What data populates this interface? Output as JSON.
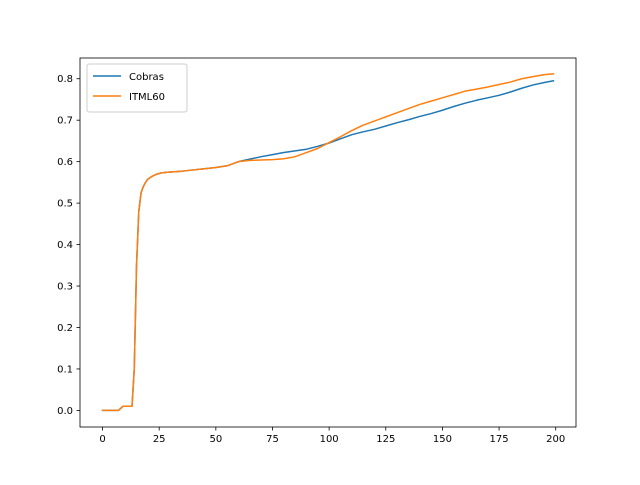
{
  "chart_data": {
    "type": "line",
    "title": "",
    "xlabel": "",
    "ylabel": "",
    "xlim": [
      -9.95,
      208.95
    ],
    "ylim": [
      -0.04,
      0.85
    ],
    "xticks": [
      0,
      25,
      50,
      75,
      100,
      125,
      150,
      175,
      200
    ],
    "yticks": [
      0.0,
      0.1,
      0.2,
      0.3,
      0.4,
      0.5,
      0.6,
      0.7,
      0.8
    ],
    "xtick_labels": [
      "0",
      "25",
      "50",
      "75",
      "100",
      "125",
      "150",
      "175",
      "200"
    ],
    "ytick_labels": [
      "0.0",
      "0.1",
      "0.2",
      "0.3",
      "0.4",
      "0.5",
      "0.6",
      "0.7",
      "0.8"
    ],
    "grid": false,
    "legend": {
      "position": "top-left"
    },
    "series": [
      {
        "name": "Cobras",
        "color": "#1f77b4",
        "x": [
          0,
          7,
          9,
          13,
          14,
          15,
          16,
          17,
          18,
          19,
          20,
          22,
          24,
          26,
          28,
          30,
          35,
          40,
          45,
          50,
          55,
          60,
          65,
          70,
          75,
          80,
          85,
          90,
          95,
          100,
          105,
          110,
          115,
          120,
          125,
          130,
          135,
          140,
          145,
          150,
          155,
          160,
          165,
          170,
          175,
          180,
          185,
          190,
          195,
          199
        ],
        "values": [
          0.0,
          0.0,
          0.01,
          0.01,
          0.1,
          0.35,
          0.48,
          0.525,
          0.54,
          0.55,
          0.558,
          0.565,
          0.57,
          0.573,
          0.574,
          0.575,
          0.577,
          0.58,
          0.583,
          0.586,
          0.59,
          0.6,
          0.606,
          0.612,
          0.617,
          0.622,
          0.626,
          0.63,
          0.637,
          0.645,
          0.655,
          0.665,
          0.672,
          0.678,
          0.686,
          0.694,
          0.701,
          0.709,
          0.716,
          0.724,
          0.733,
          0.741,
          0.748,
          0.754,
          0.76,
          0.768,
          0.777,
          0.785,
          0.791,
          0.795
        ]
      },
      {
        "name": "ITML60",
        "color": "#ff7f0e",
        "x": [
          0,
          7,
          9,
          13,
          14,
          15,
          16,
          17,
          18,
          19,
          20,
          22,
          24,
          26,
          28,
          30,
          35,
          40,
          45,
          50,
          55,
          60,
          65,
          70,
          75,
          80,
          85,
          90,
          95,
          100,
          105,
          110,
          115,
          120,
          125,
          130,
          135,
          140,
          145,
          150,
          155,
          160,
          165,
          170,
          175,
          180,
          185,
          190,
          195,
          199
        ],
        "values": [
          0.0,
          0.0,
          0.01,
          0.01,
          0.1,
          0.35,
          0.48,
          0.525,
          0.54,
          0.55,
          0.558,
          0.565,
          0.57,
          0.573,
          0.574,
          0.575,
          0.577,
          0.58,
          0.583,
          0.586,
          0.59,
          0.6,
          0.603,
          0.604,
          0.605,
          0.607,
          0.612,
          0.622,
          0.632,
          0.646,
          0.66,
          0.675,
          0.688,
          0.698,
          0.708,
          0.718,
          0.728,
          0.738,
          0.746,
          0.754,
          0.762,
          0.77,
          0.775,
          0.78,
          0.786,
          0.792,
          0.8,
          0.805,
          0.81,
          0.812
        ]
      }
    ]
  }
}
